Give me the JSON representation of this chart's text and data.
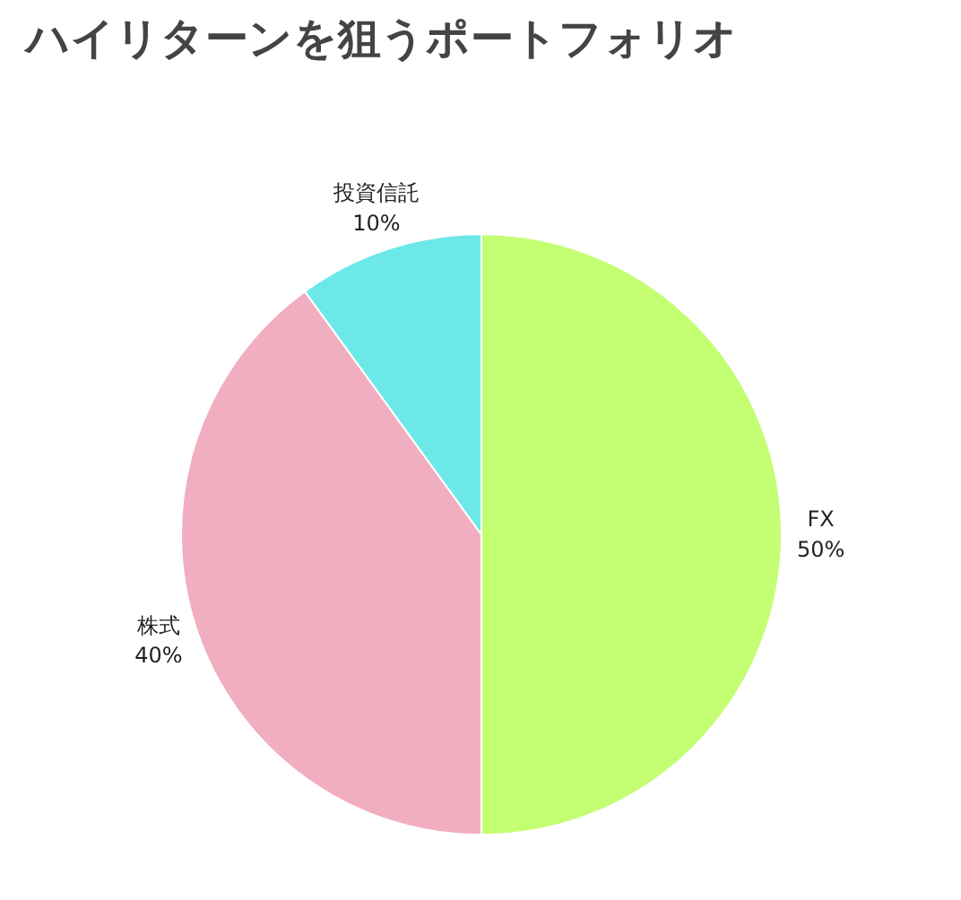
{
  "chart_data": {
    "type": "pie",
    "title": "ハイリターンを狙うポートフォリオ",
    "categories": [
      "FX",
      "株式",
      "投資信託"
    ],
    "values": [
      50,
      40,
      10
    ],
    "value_labels": [
      "50%",
      "40%",
      "10%"
    ],
    "colors": [
      "#c3fe73",
      "#f1aec1",
      "#6de8e8"
    ]
  }
}
